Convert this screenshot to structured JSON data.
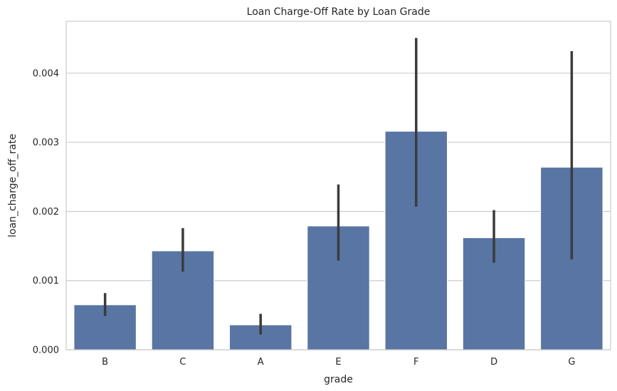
{
  "chart_data": {
    "type": "bar",
    "title": "Loan Charge-Off Rate by Loan Grade",
    "xlabel": "grade",
    "ylabel": "loan_charge_off_rate",
    "categories": [
      "B",
      "C",
      "A",
      "E",
      "F",
      "D",
      "G"
    ],
    "values": [
      0.00065,
      0.00143,
      0.00036,
      0.00179,
      0.00316,
      0.00162,
      0.00264
    ],
    "error_low": [
      0.00049,
      0.00113,
      0.00022,
      0.00129,
      0.00207,
      0.00126,
      0.00131
    ],
    "error_high": [
      0.00082,
      0.00176,
      0.00052,
      0.00239,
      0.00451,
      0.00202,
      0.00432
    ],
    "yticks": [
      0.0,
      0.001,
      0.002,
      0.003,
      0.004
    ],
    "ytick_labels": [
      "0.000",
      "0.001",
      "0.002",
      "0.003",
      "0.004"
    ],
    "ylim": [
      0,
      0.00475
    ],
    "grid": "horizontal",
    "bar_color": "#5875a4",
    "error_color": "#3b3b3b"
  }
}
